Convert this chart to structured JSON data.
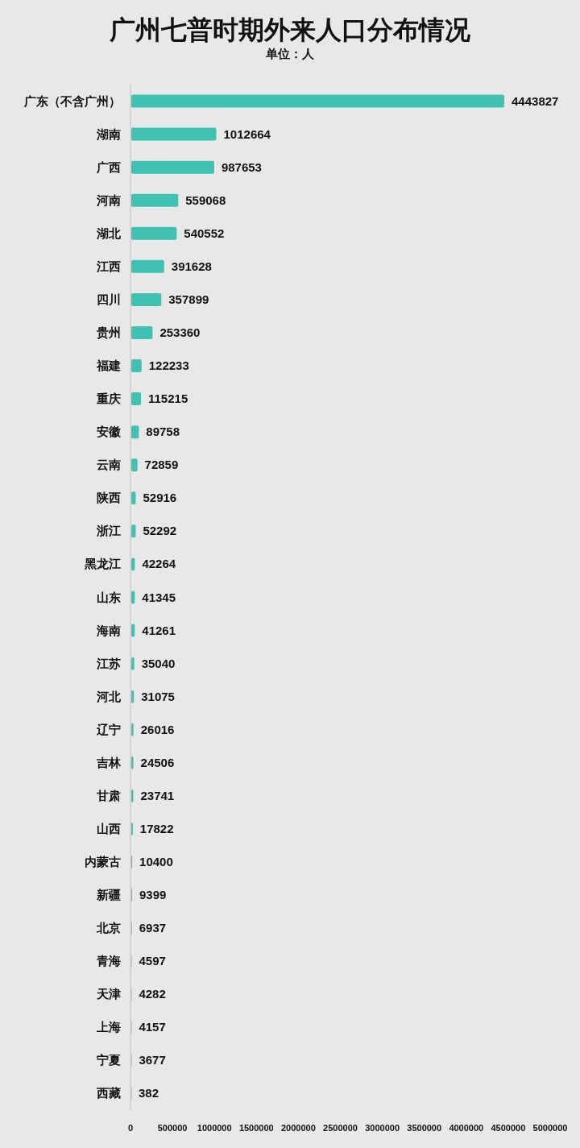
{
  "chart_data": {
    "type": "bar",
    "orientation": "horizontal",
    "title": "广州七普时期外来人口分布情况",
    "subtitle": "单位：人",
    "categories": [
      "广东（不含广州）",
      "湖南",
      "广西",
      "河南",
      "湖北",
      "江西",
      "四川",
      "贵州",
      "福建",
      "重庆",
      "安徽",
      "云南",
      "陕西",
      "浙江",
      "黑龙江",
      "山东",
      "海南",
      "江苏",
      "河北",
      "辽宁",
      "吉林",
      "甘肃",
      "山西",
      "内蒙古",
      "新疆",
      "北京",
      "青海",
      "天津",
      "上海",
      "宁夏",
      "西藏"
    ],
    "values": [
      4443827,
      1012664,
      987653,
      559068,
      540552,
      391628,
      357899,
      253360,
      122233,
      115215,
      89758,
      72859,
      52916,
      52292,
      42264,
      41345,
      41261,
      35040,
      31075,
      26016,
      24506,
      23741,
      17822,
      10400,
      9399,
      6937,
      4597,
      4282,
      4157,
      3677,
      382
    ],
    "color": "#3fc2b2",
    "xlim": [
      0,
      5000000
    ],
    "xticks": [
      0,
      500000,
      1000000,
      1500000,
      2000000,
      2500000,
      3000000,
      3500000,
      4000000,
      4500000,
      5000000
    ],
    "data_labels": true
  }
}
